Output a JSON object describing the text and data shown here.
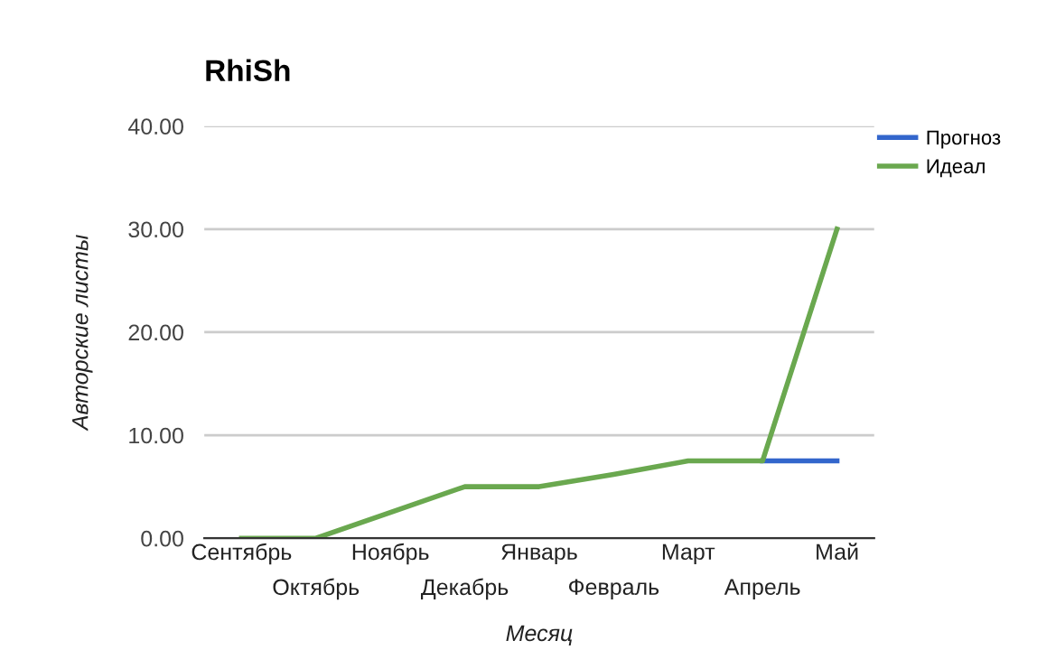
{
  "chart_data": {
    "type": "line",
    "title": "RhiSh",
    "xlabel": "Месяц",
    "ylabel": "Авторские листы",
    "categories": [
      "Сентябрь",
      "Октябрь",
      "Ноябрь",
      "Декабрь",
      "Январь",
      "Февраль",
      "Март",
      "Апрель",
      "Май"
    ],
    "series": [
      {
        "name": "Прогноз",
        "color": "#3366cc",
        "values": [
          null,
          null,
          null,
          null,
          null,
          null,
          null,
          7.5,
          7.5
        ]
      },
      {
        "name": "Идеал",
        "color": "#6aa84f",
        "values": [
          0,
          0,
          2.5,
          5,
          5,
          6.2,
          7.5,
          7.5,
          30
        ]
      }
    ],
    "ylim": [
      0,
      40
    ],
    "yticks": [
      {
        "value": 0,
        "label": "0.00"
      },
      {
        "value": 10,
        "label": "10.00"
      },
      {
        "value": 20,
        "label": "20.00"
      },
      {
        "value": 30,
        "label": "30.00"
      },
      {
        "value": 40,
        "label": "40.00"
      }
    ],
    "grid": "y",
    "legend": "top right",
    "marker": "none",
    "line_style": "solid"
  }
}
